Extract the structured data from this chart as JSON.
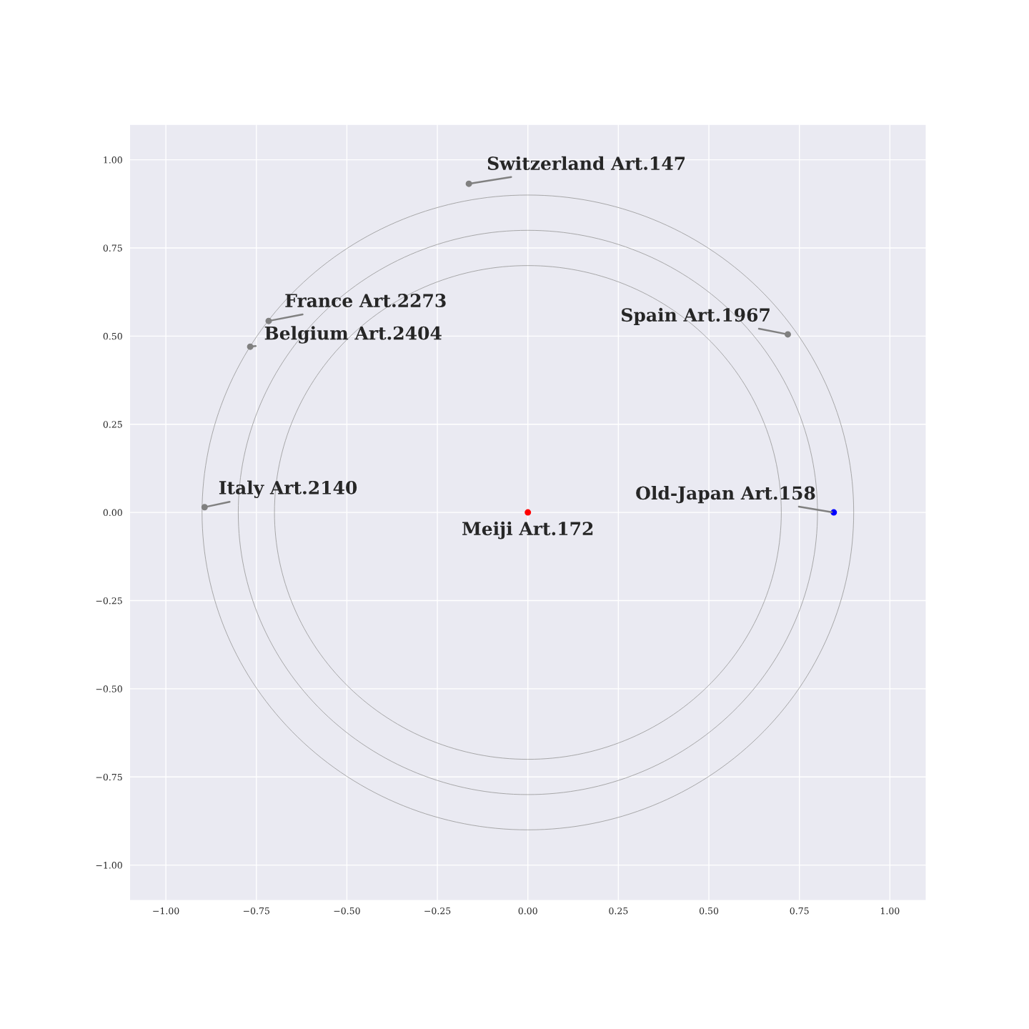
{
  "chart_data": {
    "type": "scatter",
    "xlim": [
      -1.1,
      1.1
    ],
    "ylim": [
      -1.1,
      1.1
    ],
    "xticks": [
      {
        "value": -1,
        "label": "−1.00"
      },
      {
        "value": -0.75,
        "label": "−0.75"
      },
      {
        "value": -0.5,
        "label": "−0.50"
      },
      {
        "value": -0.25,
        "label": "−0.25"
      },
      {
        "value": 0,
        "label": "0.00"
      },
      {
        "value": 0.25,
        "label": "0.25"
      },
      {
        "value": 0.5,
        "label": "0.50"
      },
      {
        "value": 0.75,
        "label": "0.75"
      },
      {
        "value": 1,
        "label": "1.00"
      }
    ],
    "yticks": [
      {
        "value": -1,
        "label": "−1.00"
      },
      {
        "value": -0.75,
        "label": "−0.75"
      },
      {
        "value": -0.5,
        "label": "−0.50"
      },
      {
        "value": -0.25,
        "label": "−0.25"
      },
      {
        "value": 0,
        "label": "0.00"
      },
      {
        "value": 0.25,
        "label": "0.25"
      },
      {
        "value": 0.5,
        "label": "0.50"
      },
      {
        "value": 0.75,
        "label": "0.75"
      },
      {
        "value": 1,
        "label": "1.00"
      }
    ],
    "grid": true,
    "marker": "circle",
    "series": [
      {
        "name": "Switzerland Art.147",
        "color": "#808080",
        "x": [
          -0.163
        ],
        "values": [
          0.932
        ]
      },
      {
        "name": "France Art.2273",
        "color": "#808080",
        "x": [
          -0.716
        ],
        "values": [
          0.543
        ]
      },
      {
        "name": "Belgium Art.2404",
        "color": "#808080",
        "x": [
          -0.767
        ],
        "values": [
          0.47
        ]
      },
      {
        "name": "Spain Art.1967",
        "color": "#808080",
        "x": [
          0.718
        ],
        "values": [
          0.505
        ]
      },
      {
        "name": "Italy Art.2140",
        "color": "#808080",
        "x": [
          -0.893
        ],
        "values": [
          0.015
        ]
      },
      {
        "name": "Old-Japan Art.158",
        "color": "#0000ff",
        "x": [
          0.845
        ],
        "values": [
          0
        ]
      },
      {
        "name": "Meiji Art.172",
        "color": "#ff0000",
        "x": [
          0
        ],
        "values": [
          0
        ]
      }
    ]
  }
}
